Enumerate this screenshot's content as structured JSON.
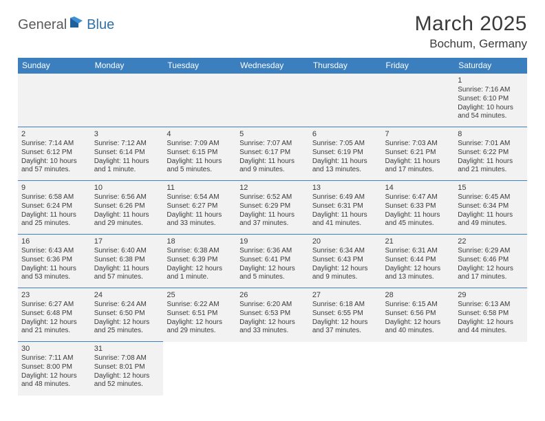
{
  "logo": {
    "part1": "General",
    "part2": "Blue"
  },
  "title": "March 2025",
  "location": "Bochum, Germany",
  "colors": {
    "header_bg": "#3b7fbf",
    "header_text": "#ffffff",
    "cell_bg": "#f2f2f2",
    "cell_border": "#3b7fbf",
    "text": "#3a3a3a",
    "logo_gray": "#5a5a5a",
    "logo_blue": "#2f6fa8"
  },
  "day_headers": [
    "Sunday",
    "Monday",
    "Tuesday",
    "Wednesday",
    "Thursday",
    "Friday",
    "Saturday"
  ],
  "weeks": [
    [
      null,
      null,
      null,
      null,
      null,
      null,
      {
        "n": "1",
        "sr": "Sunrise: 7:16 AM",
        "ss": "Sunset: 6:10 PM",
        "d1": "Daylight: 10 hours",
        "d2": "and 54 minutes."
      }
    ],
    [
      {
        "n": "2",
        "sr": "Sunrise: 7:14 AM",
        "ss": "Sunset: 6:12 PM",
        "d1": "Daylight: 10 hours",
        "d2": "and 57 minutes."
      },
      {
        "n": "3",
        "sr": "Sunrise: 7:12 AM",
        "ss": "Sunset: 6:14 PM",
        "d1": "Daylight: 11 hours",
        "d2": "and 1 minute."
      },
      {
        "n": "4",
        "sr": "Sunrise: 7:09 AM",
        "ss": "Sunset: 6:15 PM",
        "d1": "Daylight: 11 hours",
        "d2": "and 5 minutes."
      },
      {
        "n": "5",
        "sr": "Sunrise: 7:07 AM",
        "ss": "Sunset: 6:17 PM",
        "d1": "Daylight: 11 hours",
        "d2": "and 9 minutes."
      },
      {
        "n": "6",
        "sr": "Sunrise: 7:05 AM",
        "ss": "Sunset: 6:19 PM",
        "d1": "Daylight: 11 hours",
        "d2": "and 13 minutes."
      },
      {
        "n": "7",
        "sr": "Sunrise: 7:03 AM",
        "ss": "Sunset: 6:21 PM",
        "d1": "Daylight: 11 hours",
        "d2": "and 17 minutes."
      },
      {
        "n": "8",
        "sr": "Sunrise: 7:01 AM",
        "ss": "Sunset: 6:22 PM",
        "d1": "Daylight: 11 hours",
        "d2": "and 21 minutes."
      }
    ],
    [
      {
        "n": "9",
        "sr": "Sunrise: 6:58 AM",
        "ss": "Sunset: 6:24 PM",
        "d1": "Daylight: 11 hours",
        "d2": "and 25 minutes."
      },
      {
        "n": "10",
        "sr": "Sunrise: 6:56 AM",
        "ss": "Sunset: 6:26 PM",
        "d1": "Daylight: 11 hours",
        "d2": "and 29 minutes."
      },
      {
        "n": "11",
        "sr": "Sunrise: 6:54 AM",
        "ss": "Sunset: 6:27 PM",
        "d1": "Daylight: 11 hours",
        "d2": "and 33 minutes."
      },
      {
        "n": "12",
        "sr": "Sunrise: 6:52 AM",
        "ss": "Sunset: 6:29 PM",
        "d1": "Daylight: 11 hours",
        "d2": "and 37 minutes."
      },
      {
        "n": "13",
        "sr": "Sunrise: 6:49 AM",
        "ss": "Sunset: 6:31 PM",
        "d1": "Daylight: 11 hours",
        "d2": "and 41 minutes."
      },
      {
        "n": "14",
        "sr": "Sunrise: 6:47 AM",
        "ss": "Sunset: 6:33 PM",
        "d1": "Daylight: 11 hours",
        "d2": "and 45 minutes."
      },
      {
        "n": "15",
        "sr": "Sunrise: 6:45 AM",
        "ss": "Sunset: 6:34 PM",
        "d1": "Daylight: 11 hours",
        "d2": "and 49 minutes."
      }
    ],
    [
      {
        "n": "16",
        "sr": "Sunrise: 6:43 AM",
        "ss": "Sunset: 6:36 PM",
        "d1": "Daylight: 11 hours",
        "d2": "and 53 minutes."
      },
      {
        "n": "17",
        "sr": "Sunrise: 6:40 AM",
        "ss": "Sunset: 6:38 PM",
        "d1": "Daylight: 11 hours",
        "d2": "and 57 minutes."
      },
      {
        "n": "18",
        "sr": "Sunrise: 6:38 AM",
        "ss": "Sunset: 6:39 PM",
        "d1": "Daylight: 12 hours",
        "d2": "and 1 minute."
      },
      {
        "n": "19",
        "sr": "Sunrise: 6:36 AM",
        "ss": "Sunset: 6:41 PM",
        "d1": "Daylight: 12 hours",
        "d2": "and 5 minutes."
      },
      {
        "n": "20",
        "sr": "Sunrise: 6:34 AM",
        "ss": "Sunset: 6:43 PM",
        "d1": "Daylight: 12 hours",
        "d2": "and 9 minutes."
      },
      {
        "n": "21",
        "sr": "Sunrise: 6:31 AM",
        "ss": "Sunset: 6:44 PM",
        "d1": "Daylight: 12 hours",
        "d2": "and 13 minutes."
      },
      {
        "n": "22",
        "sr": "Sunrise: 6:29 AM",
        "ss": "Sunset: 6:46 PM",
        "d1": "Daylight: 12 hours",
        "d2": "and 17 minutes."
      }
    ],
    [
      {
        "n": "23",
        "sr": "Sunrise: 6:27 AM",
        "ss": "Sunset: 6:48 PM",
        "d1": "Daylight: 12 hours",
        "d2": "and 21 minutes."
      },
      {
        "n": "24",
        "sr": "Sunrise: 6:24 AM",
        "ss": "Sunset: 6:50 PM",
        "d1": "Daylight: 12 hours",
        "d2": "and 25 minutes."
      },
      {
        "n": "25",
        "sr": "Sunrise: 6:22 AM",
        "ss": "Sunset: 6:51 PM",
        "d1": "Daylight: 12 hours",
        "d2": "and 29 minutes."
      },
      {
        "n": "26",
        "sr": "Sunrise: 6:20 AM",
        "ss": "Sunset: 6:53 PM",
        "d1": "Daylight: 12 hours",
        "d2": "and 33 minutes."
      },
      {
        "n": "27",
        "sr": "Sunrise: 6:18 AM",
        "ss": "Sunset: 6:55 PM",
        "d1": "Daylight: 12 hours",
        "d2": "and 37 minutes."
      },
      {
        "n": "28",
        "sr": "Sunrise: 6:15 AM",
        "ss": "Sunset: 6:56 PM",
        "d1": "Daylight: 12 hours",
        "d2": "and 40 minutes."
      },
      {
        "n": "29",
        "sr": "Sunrise: 6:13 AM",
        "ss": "Sunset: 6:58 PM",
        "d1": "Daylight: 12 hours",
        "d2": "and 44 minutes."
      }
    ],
    [
      {
        "n": "30",
        "sr": "Sunrise: 7:11 AM",
        "ss": "Sunset: 8:00 PM",
        "d1": "Daylight: 12 hours",
        "d2": "and 48 minutes."
      },
      {
        "n": "31",
        "sr": "Sunrise: 7:08 AM",
        "ss": "Sunset: 8:01 PM",
        "d1": "Daylight: 12 hours",
        "d2": "and 52 minutes."
      },
      null,
      null,
      null,
      null,
      null
    ]
  ]
}
